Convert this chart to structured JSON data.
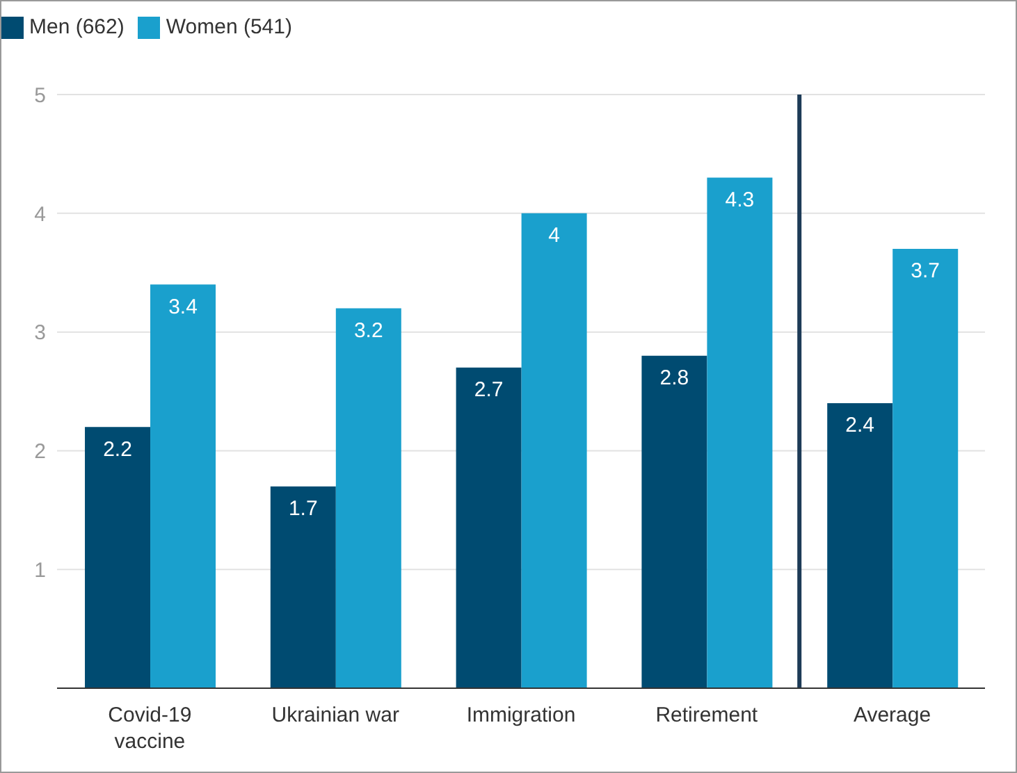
{
  "chart_data": {
    "type": "bar",
    "categories": [
      "Covid-19 vaccine",
      "Ukrainian war",
      "Immigration",
      "Retirement",
      "Average"
    ],
    "series": [
      {
        "name": "Men (662)",
        "color": "#004b71",
        "values": [
          2.2,
          1.7,
          2.7,
          2.8,
          2.4
        ]
      },
      {
        "name": "Women (541)",
        "color": "#1aa0cd",
        "values": [
          3.4,
          3.2,
          4,
          4.3,
          3.7
        ]
      }
    ],
    "ylim": [
      0,
      5
    ],
    "yticks": [
      {
        "value": 0,
        "label": null
      },
      1,
      2,
      3,
      4,
      5
    ],
    "grid": "y",
    "legend": "top left",
    "data_labels": true,
    "ref_lines": [
      {
        "axis": "x",
        "value": "Average",
        "color": "#1d3b57"
      }
    ]
  }
}
